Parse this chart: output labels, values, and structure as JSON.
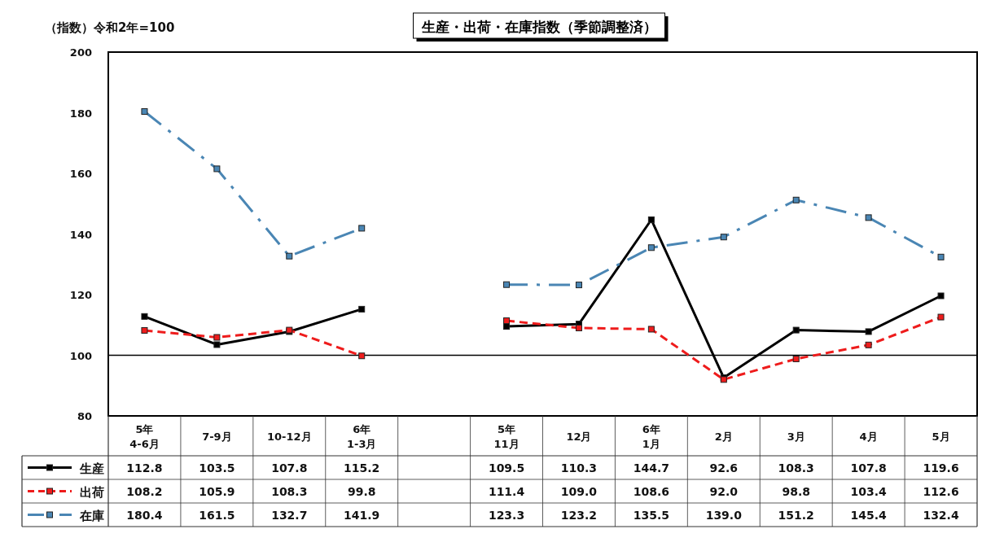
{
  "chart_data": {
    "type": "line",
    "title": "生産・出荷・在庫指数（季節調整済）",
    "ylabel": "（指数）令和2年=100",
    "categories": [
      "5年\n4-6月",
      "7-9月",
      "10-12月",
      "6年\n1-3月",
      null,
      "5年\n11月",
      "12月",
      "6年\n1月",
      "2月",
      "3月",
      "4月",
      "5月"
    ],
    "series": [
      {
        "name": "生産",
        "color": "#000000",
        "line_style": "solid",
        "values": [
          112.8,
          103.5,
          107.8,
          115.2,
          null,
          109.5,
          110.3,
          144.7,
          92.6,
          108.3,
          107.8,
          119.6
        ],
        "value_labels": [
          "112.8",
          "103.5",
          "107.8",
          "115.2",
          null,
          "109.5",
          "110.3",
          "144.7",
          "92.6",
          "108.3",
          "107.8",
          "119.6"
        ]
      },
      {
        "name": "出荷",
        "color": "#ee1c1c",
        "line_style": "dashed",
        "values": [
          108.2,
          105.9,
          108.3,
          99.8,
          null,
          111.4,
          109.0,
          108.6,
          92.0,
          98.8,
          103.4,
          112.6
        ],
        "value_labels": [
          "108.2",
          "105.9",
          "108.3",
          "99.8",
          null,
          "111.4",
          "109.0",
          "108.6",
          "92.0",
          "98.8",
          "103.4",
          "112.6"
        ]
      },
      {
        "name": "在庫",
        "color": "#4a86b4",
        "line_style": "dashdot",
        "values": [
          180.4,
          161.5,
          132.7,
          141.9,
          null,
          123.3,
          123.2,
          135.5,
          139.0,
          151.2,
          145.4,
          132.4
        ],
        "value_labels": [
          "180.4",
          "161.5",
          "132.7",
          "141.9",
          null,
          "123.3",
          "123.2",
          "135.5",
          "139.0",
          "151.2",
          "145.4",
          "132.4"
        ]
      }
    ],
    "ylim": [
      80,
      200
    ],
    "yticks": [
      80,
      100,
      120,
      140,
      160,
      180,
      200
    ],
    "ref_lines": [
      {
        "axis": "y",
        "value": 100,
        "color": "#000000"
      }
    ],
    "marker": "square",
    "legend": "bottom"
  }
}
